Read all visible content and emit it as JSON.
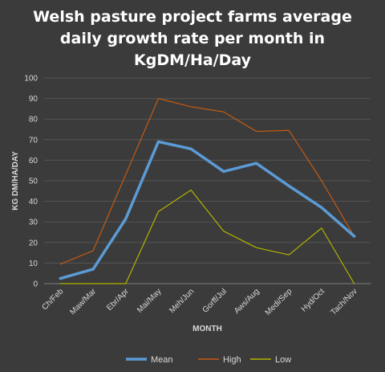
{
  "chart_data": {
    "type": "line",
    "title_lines": [
      "Welsh pasture project farms average",
      "daily growth rate per month in",
      "KgDM/Ha/Day"
    ],
    "xlabel": "MONTH",
    "ylabel": "KG DM/HA/DAY",
    "ylim": [
      0,
      100
    ],
    "yticks": [
      0,
      10,
      20,
      30,
      40,
      50,
      60,
      70,
      80,
      90,
      100
    ],
    "grid": true,
    "legend_position": "bottom",
    "categories": [
      "Ch/Feb",
      "Maw/Mar",
      "Ebr/Apr",
      "Mai/May",
      "Meh/Jun",
      "Gorff/Jul",
      "Aws/Aug",
      "Medi/Sep",
      "Hyd/Oct",
      "Tach/Nov"
    ],
    "series": [
      {
        "name": "Mean",
        "color": "#5b9bd5",
        "values": [
          2.5,
          7,
          31.5,
          69,
          65.5,
          54.5,
          58.5,
          47.5,
          37,
          23
        ]
      },
      {
        "name": "High",
        "color": "#c55a11",
        "values": [
          9.5,
          16,
          53,
          90,
          86,
          83.5,
          74,
          74.5,
          50,
          23
        ]
      },
      {
        "name": "Low",
        "color": "#b3b300",
        "values": [
          0,
          0,
          0,
          35,
          45.5,
          25.5,
          17.5,
          14,
          27,
          0
        ]
      }
    ]
  }
}
